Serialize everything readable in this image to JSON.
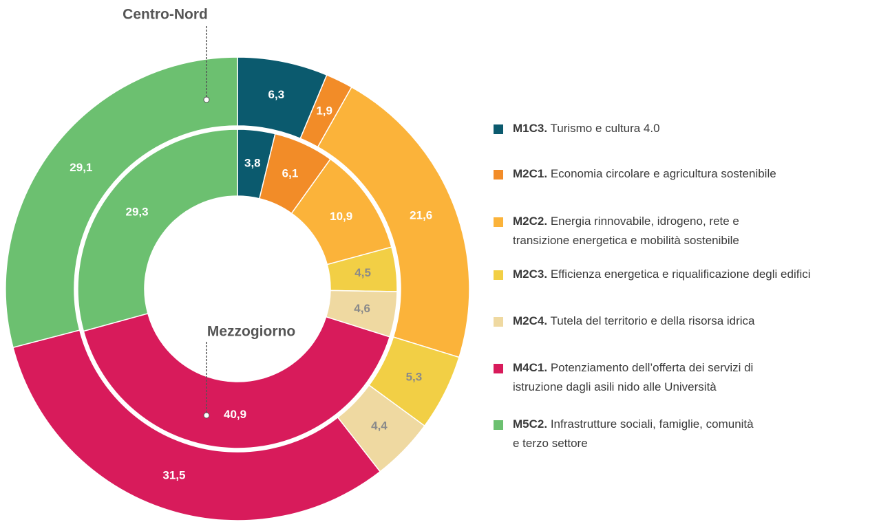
{
  "chart_data": {
    "type": "donut",
    "categories": [
      "M1C3.",
      "M2C1.",
      "M2C2.",
      "M2C3.",
      "M2C4.",
      "M4C1.",
      "M5C2."
    ],
    "descriptions": [
      [
        "Turismo e cultura 4.0"
      ],
      [
        "Economia circolare e agricultura sostenibile"
      ],
      [
        "Energia rinnovabile, idrogeno, rete e",
        "transizione energetica e mobilità sostenibile"
      ],
      [
        "Efficienza energetica e riqualificazione degli edifici"
      ],
      [
        "Tutela del territorio e della risorsa idrica"
      ],
      [
        "Potenziamento dell’offerta dei servizi di",
        "istruzione dagli asili nido alle Università"
      ],
      [
        "Infrastrutture sociali, famiglie, comunità",
        "e terzo settore"
      ]
    ],
    "colors": [
      "#0b5a6e",
      "#f28c28",
      "#fbb33a",
      "#f2cf45",
      "#efd9a1",
      "#d81b5b",
      "#6cc070"
    ],
    "series": [
      {
        "name": "Centro-Nord",
        "values": [
          6.3,
          1.9,
          21.6,
          5.3,
          4.4,
          31.5,
          29.1
        ],
        "value_labels": [
          "6,3",
          "1,9",
          "21,6",
          "5,3",
          "4,4",
          "31,5",
          "29,1"
        ]
      },
      {
        "name": "Mezzogiorno",
        "values": [
          3.8,
          6.1,
          10.9,
          4.5,
          4.6,
          40.9,
          29.3
        ],
        "value_labels": [
          "3,8",
          "6,1",
          "10,9",
          "4,5",
          "4,6",
          "40,9",
          "29,3"
        ]
      }
    ]
  }
}
